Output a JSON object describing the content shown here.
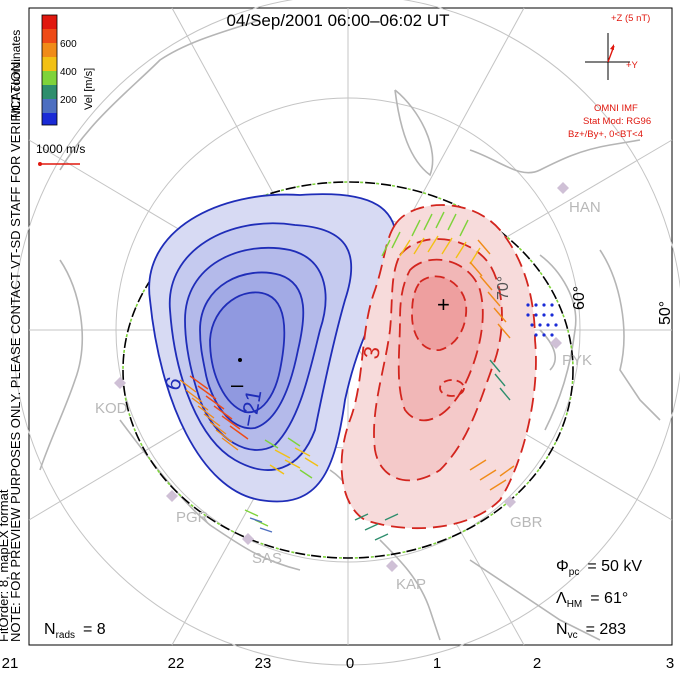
{
  "title": "04/Sep/2001 06:00–06:02 UT",
  "colorbar": {
    "title": "Vel [m/s]",
    "ticks": [
      "600",
      "400",
      "200"
    ],
    "colors": [
      "#1a2bd6",
      "#4d6fc0",
      "#2e8e6d",
      "#7ed33a",
      "#f2c014",
      "#f08b18",
      "#ee4a16",
      "#e0180f"
    ]
  },
  "coord_label": "MLT coordinates",
  "preview_note": "NOTE: FOR PREVIEW PURPOSES ONLY. PLEASE CONTACT VT-SD STAFF FOR VERIFICATION.",
  "fit_note": "FitOrder: 8,  mapEX format",
  "scale_vector_label": "1000 m/s",
  "imf": {
    "z_label": "+Z (5 nT)",
    "y_label": "+Y",
    "omni": "OMNI IMF",
    "stat_mod": "Stat Mod: RG96",
    "condition": "Bz+/By+, 0<BT<4"
  },
  "stations": [
    {
      "name": "HAN"
    },
    {
      "name": "PYK"
    },
    {
      "name": "KOD"
    },
    {
      "name": "PGR"
    },
    {
      "name": "SAS"
    },
    {
      "name": "KAP"
    },
    {
      "name": "GBR"
    }
  ],
  "latitude_labels": [
    "60°",
    "50°",
    "70°"
  ],
  "contour_labels": {
    "neg_a": "6",
    "neg_b": "−21",
    "neg_minus": "–",
    "pos_a": "3",
    "pos_plus": "+"
  },
  "stats": {
    "phi_sym": "Φ",
    "phi_sub": "pc",
    "phi_val": "= 50 kV",
    "lam_sym": "Λ",
    "lam_sub": "HM",
    "lam_val": "= 61°",
    "nvc_sym": "N",
    "nvc_sub": "vc",
    "nvc_val": "= 283",
    "nrads_sym": "N",
    "nrads_sub": "rads",
    "nrads_val": "= 8"
  },
  "mlt_ticks": [
    "21",
    "22",
    "23",
    "0",
    "1",
    "2",
    "3"
  ],
  "colors": {
    "negative_fill": "#c9cdef",
    "negative_line": "#1f2db8",
    "positive_fill": "#f6d2d2",
    "positive_line": "#d3251e",
    "land": "#b5b5b5",
    "grid": "#c4c4c4",
    "annotation": "#e0180f"
  }
}
